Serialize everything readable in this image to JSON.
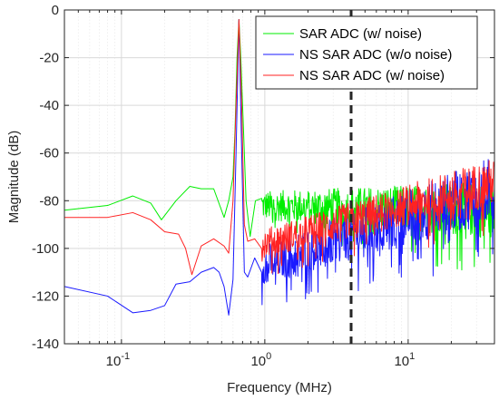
{
  "chart_data": {
    "type": "line",
    "xscale": "log",
    "xlim": [
      0.04,
      40
    ],
    "ylim": [
      -140,
      0
    ],
    "grid": true,
    "xlabel": "Frequency (MHz)",
    "ylabel": "Magnitude (dB)",
    "x_ticks": [
      {
        "value": 0.1,
        "base": "10",
        "exp": "-1"
      },
      {
        "value": 1,
        "base": "10",
        "exp": "0"
      },
      {
        "value": 10,
        "base": "10",
        "exp": "1"
      }
    ],
    "y_ticks": [
      "0",
      "-20",
      "-40",
      "-60",
      "-80",
      "-100",
      "-120",
      "-140"
    ],
    "legend_position": "top-right",
    "annotations": [
      {
        "type": "vertical-dashed-line",
        "x": 4,
        "color": "#262626"
      }
    ],
    "series": [
      {
        "name": "SAR ADC (w/ noise)",
        "color": "#00ee00",
        "points": [
          [
            0.04,
            -84
          ],
          [
            0.08,
            -82
          ],
          [
            0.12,
            -78
          ],
          [
            0.16,
            -81
          ],
          [
            0.19,
            -88
          ],
          [
            0.24,
            -80
          ],
          [
            0.3,
            -74
          ],
          [
            0.36,
            -75
          ],
          [
            0.44,
            -75
          ],
          [
            0.52,
            -87
          ],
          [
            0.56,
            -80
          ],
          [
            0.6,
            -70
          ],
          [
            0.62,
            -50
          ],
          [
            0.64,
            -20
          ],
          [
            0.66,
            -4
          ],
          [
            0.68,
            -20
          ],
          [
            0.71,
            -50
          ],
          [
            0.74,
            -80
          ],
          [
            0.79,
            -95
          ],
          [
            0.86,
            -80
          ],
          [
            0.95,
            -79
          ]
        ],
        "noise": {
          "start": 0.95,
          "end": 40,
          "base_start": -82,
          "base_end": -84,
          "spread_start": 6,
          "spread_end": 12
        }
      },
      {
        "name": "NS SAR ADC (w/o noise)",
        "color": "#1a1aff",
        "points": [
          [
            0.04,
            -116
          ],
          [
            0.08,
            -120
          ],
          [
            0.12,
            -127
          ],
          [
            0.16,
            -126
          ],
          [
            0.2,
            -124
          ],
          [
            0.24,
            -115
          ],
          [
            0.3,
            -114
          ],
          [
            0.36,
            -110
          ],
          [
            0.44,
            -108
          ],
          [
            0.48,
            -110
          ],
          [
            0.52,
            -116
          ],
          [
            0.56,
            -128
          ],
          [
            0.6,
            -113
          ],
          [
            0.63,
            -60
          ],
          [
            0.66,
            -4
          ],
          [
            0.69,
            -60
          ],
          [
            0.72,
            -110
          ],
          [
            0.76,
            -112
          ],
          [
            0.85,
            -104
          ],
          [
            0.95,
            -110
          ]
        ],
        "noise": {
          "start": 0.95,
          "end": 40,
          "base_start": -107,
          "base_end": -75,
          "spread_start": 8,
          "spread_end": 14
        }
      },
      {
        "name": "NS SAR ADC (w/ noise)",
        "color": "#ff2222",
        "points": [
          [
            0.04,
            -87
          ],
          [
            0.08,
            -87
          ],
          [
            0.12,
            -85
          ],
          [
            0.16,
            -88
          ],
          [
            0.2,
            -93
          ],
          [
            0.25,
            -94
          ],
          [
            0.28,
            -100
          ],
          [
            0.31,
            -111
          ],
          [
            0.36,
            -99
          ],
          [
            0.44,
            -96
          ],
          [
            0.52,
            -99
          ],
          [
            0.56,
            -102
          ],
          [
            0.6,
            -80
          ],
          [
            0.63,
            -40
          ],
          [
            0.66,
            -4
          ],
          [
            0.69,
            -40
          ],
          [
            0.72,
            -90
          ],
          [
            0.76,
            -97
          ],
          [
            0.85,
            -96
          ],
          [
            0.95,
            -100
          ]
        ],
        "noise": {
          "start": 0.95,
          "end": 40,
          "base_start": -98,
          "base_end": -72,
          "spread_start": 6,
          "spread_end": 10
        }
      }
    ]
  }
}
